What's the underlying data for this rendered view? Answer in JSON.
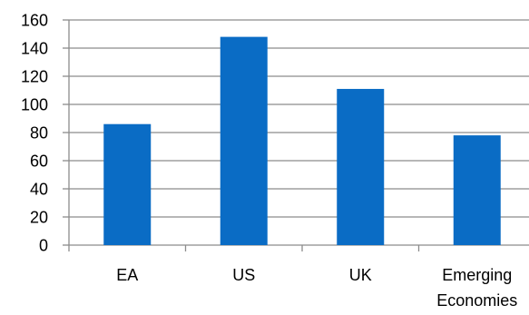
{
  "chart_data": {
    "type": "bar",
    "categories": [
      "EA",
      "US",
      "UK",
      "Emerging Economies"
    ],
    "category_label_lines": [
      [
        "EA"
      ],
      [
        "US"
      ],
      [
        "UK"
      ],
      [
        "Emerging",
        "Economies"
      ]
    ],
    "values": [
      86,
      148,
      111,
      78
    ],
    "ylim": [
      0,
      160
    ],
    "yticks": [
      0,
      20,
      40,
      60,
      80,
      100,
      120,
      140,
      160
    ],
    "title": "",
    "xlabel": "",
    "ylabel": "",
    "grid": true,
    "legend": "none",
    "colors": {
      "bar": "#0A6CC5",
      "grid": "#8C8C8C",
      "axis": "#8C8C8C",
      "text": "#000000"
    }
  }
}
